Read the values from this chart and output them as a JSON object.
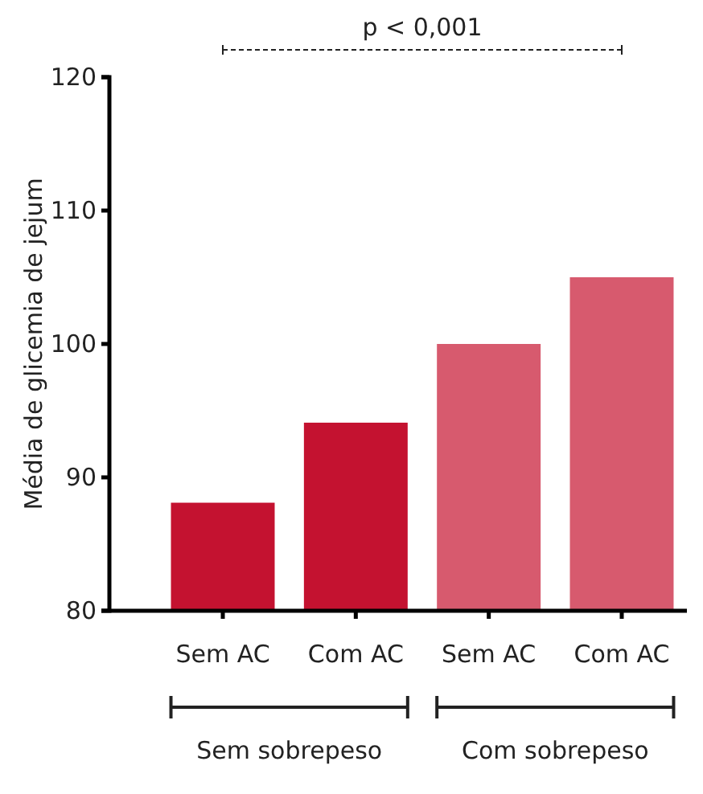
{
  "chart_data": {
    "type": "bar",
    "ylabel": "Média de glicemia de jejum",
    "categories": [
      "Sem AC",
      "Com AC",
      "Sem AC",
      "Com AC"
    ],
    "values": [
      88.1,
      94.1,
      100,
      105
    ],
    "colors": [
      "#c41230",
      "#c41230",
      "#d75a6e",
      "#d75a6e"
    ],
    "ylim": [
      80,
      120
    ],
    "yticks": [
      80,
      90,
      100,
      110,
      120
    ],
    "grid": false,
    "annotations": [
      "p < 0,001",
      "Sem sobrepeso",
      "Com sobrepeso"
    ]
  }
}
